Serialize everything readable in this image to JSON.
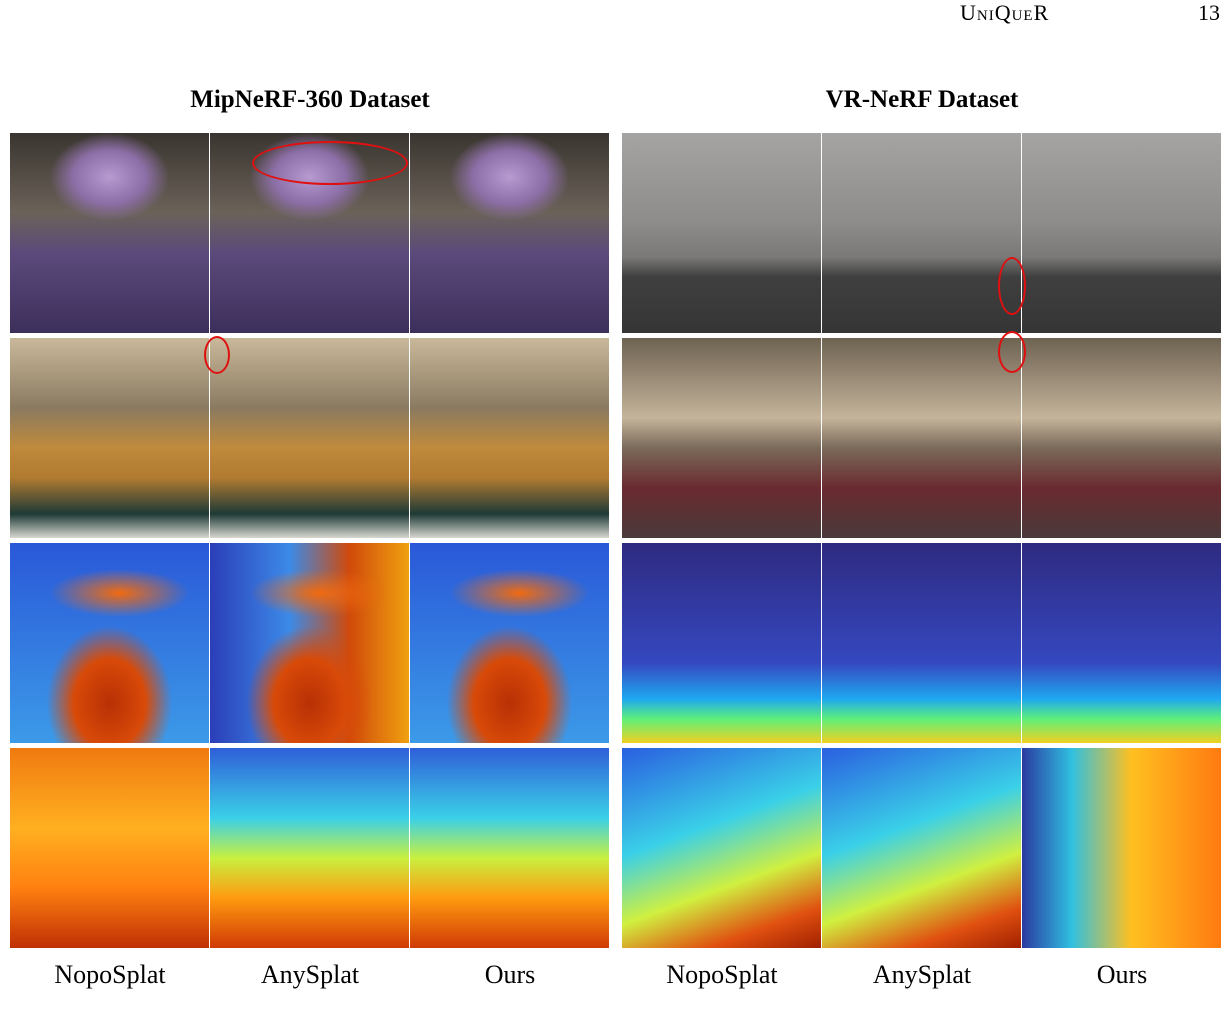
{
  "header": {
    "running_title": "UniQueR",
    "page_number": "13"
  },
  "panels": [
    {
      "title": "MipNeRF-360 Dataset",
      "columns": [
        "NopoSplat",
        "AnySplat",
        "Ours"
      ]
    },
    {
      "title": "VR-NeRF Dataset",
      "columns": [
        "NopoSplat",
        "AnySplat",
        "Ours"
      ]
    }
  ]
}
